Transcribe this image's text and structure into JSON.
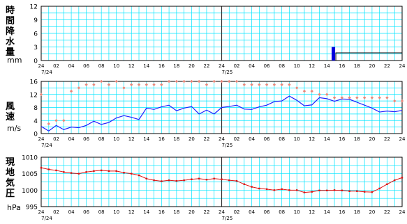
{
  "panels": {
    "rain": {
      "label": "時間降水量",
      "unit": "mm"
    },
    "wind": {
      "label": "風速",
      "unit": "m/s"
    },
    "pressure": {
      "label": "現地気圧",
      "unit": "hPa"
    }
  },
  "colors": {
    "grid": "#00e5ff",
    "wind_speed": "#1f1fff",
    "gust": "#e8877a",
    "pressure": "#dd1111",
    "rain_bar": "#0000dd",
    "border": "#000000"
  },
  "chart_data": [
    {
      "type": "bar",
      "name": "rain",
      "ylim": [
        0,
        12
      ],
      "yticks": [
        "0",
        "3",
        "6",
        "9",
        "12"
      ],
      "xtick_labels": [
        "24",
        "02",
        "04",
        "06",
        "08",
        "10",
        "12",
        "14",
        "16",
        "18",
        "20",
        "22",
        "24",
        "02",
        "04",
        "06",
        "08",
        "10",
        "12",
        "14",
        "16",
        "18",
        "20",
        "22",
        "24"
      ],
      "date_labels": [
        "7/24",
        "7/25"
      ],
      "grid": true,
      "hours": [
        39
      ],
      "values": [
        3.0
      ],
      "missing_from_hour": 39
    },
    {
      "type": "line",
      "name": "wind",
      "ylim": [
        0,
        16
      ],
      "yticks": [
        "0",
        "4",
        "8",
        "12",
        "16"
      ],
      "xtick_labels": [
        "24",
        "02",
        "04",
        "06",
        "08",
        "10",
        "12",
        "14",
        "16",
        "18",
        "20",
        "22",
        "24",
        "02",
        "04",
        "06",
        "08",
        "10",
        "12",
        "14",
        "16",
        "18",
        "20",
        "22",
        "24"
      ],
      "date_labels": [
        "7/24",
        "7/25"
      ],
      "grid": true,
      "series": [
        {
          "style": "line",
          "values": [
            2.2,
            0.8,
            2.5,
            1.2,
            2.0,
            1.8,
            2.5,
            3.8,
            2.8,
            3.4,
            4.8,
            5.5,
            5.0,
            4.3,
            7.8,
            7.4,
            8.2,
            8.7,
            7.0,
            7.8,
            8.3,
            6.0,
            7.2,
            6.0,
            8.0,
            8.3,
            8.7,
            7.5,
            7.4,
            8.2,
            8.7,
            9.8,
            10.0,
            11.5,
            10.2,
            8.5,
            8.8,
            11.0,
            10.7,
            9.9,
            10.6,
            10.5,
            9.6,
            8.7,
            7.8,
            6.6,
            6.9,
            6.7,
            7.1
          ]
        },
        {
          "style": "markers",
          "values": [
            12,
            3,
            4,
            4,
            13,
            14,
            15,
            15,
            16,
            15,
            16,
            14,
            15,
            15,
            15,
            15,
            15,
            16,
            16,
            16,
            16,
            16,
            15,
            16,
            16,
            16,
            16,
            15,
            15,
            15,
            15,
            15,
            15,
            15,
            14,
            13,
            13,
            12,
            12,
            11,
            11,
            11,
            11,
            11,
            11,
            11,
            11,
            10,
            10
          ]
        }
      ]
    },
    {
      "type": "line",
      "name": "pressure",
      "ylim": [
        995,
        1010
      ],
      "yticks": [
        "995",
        "1000",
        "1005",
        "1010"
      ],
      "xtick_labels": [
        "24",
        "02",
        "04",
        "06",
        "08",
        "10",
        "12",
        "14",
        "16",
        "18",
        "20",
        "22",
        "24",
        "02",
        "04",
        "06",
        "08",
        "10",
        "12",
        "14",
        "16",
        "18",
        "20",
        "22",
        "24"
      ],
      "date_labels": [
        "7/24",
        "7/25"
      ],
      "grid": true,
      "series": [
        {
          "values": [
            1006.8,
            1006.3,
            1006.0,
            1005.5,
            1005.2,
            1005.0,
            1005.5,
            1005.8,
            1006.0,
            1005.8,
            1005.8,
            1005.3,
            1005.0,
            1004.5,
            1003.5,
            1003.0,
            1002.7,
            1003.0,
            1002.8,
            1003.0,
            1003.3,
            1003.5,
            1003.2,
            1003.5,
            1003.3,
            1003.0,
            1002.8,
            1001.8,
            1001.0,
            1000.5,
            1000.3,
            1000.0,
            1000.3,
            1000.0,
            1000.0,
            999.3,
            999.5,
            999.9,
            999.9,
            1000.0,
            999.9,
            999.7,
            999.7,
            999.5,
            999.4,
            1000.5,
            1001.8,
            1003.0,
            1003.8
          ]
        }
      ]
    }
  ]
}
